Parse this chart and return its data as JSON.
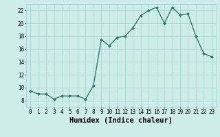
{
  "x": [
    0,
    1,
    2,
    3,
    4,
    5,
    6,
    7,
    8,
    9,
    10,
    11,
    12,
    13,
    14,
    15,
    16,
    17,
    18,
    19,
    20,
    21,
    22,
    23
  ],
  "y": [
    9.5,
    9.0,
    9.0,
    8.2,
    8.7,
    8.7,
    8.7,
    8.2,
    10.3,
    17.5,
    16.5,
    17.8,
    18.0,
    19.3,
    21.2,
    22.0,
    22.5,
    20.0,
    22.5,
    21.3,
    21.5,
    18.0,
    15.3,
    14.8
  ],
  "line_color": "#2e7d6e",
  "marker": "D",
  "marker_size": 2.0,
  "linewidth": 1.0,
  "xlabel": "Humidex (Indice chaleur)",
  "xlim": [
    -0.5,
    23.5
  ],
  "ylim": [
    7,
    23
  ],
  "yticks": [
    8,
    10,
    12,
    14,
    16,
    18,
    20,
    22
  ],
  "xtick_labels": [
    "0",
    "1",
    "2",
    "3",
    "4",
    "5",
    "6",
    "7",
    "8",
    "9",
    "10",
    "11",
    "12",
    "13",
    "14",
    "15",
    "16",
    "17",
    "18",
    "19",
    "20",
    "21",
    "22",
    "23"
  ],
  "bg_color": "#ceecea",
  "grid_color": "#a8d8d4",
  "tick_label_fontsize": 5.5,
  "xlabel_fontsize": 7.5
}
